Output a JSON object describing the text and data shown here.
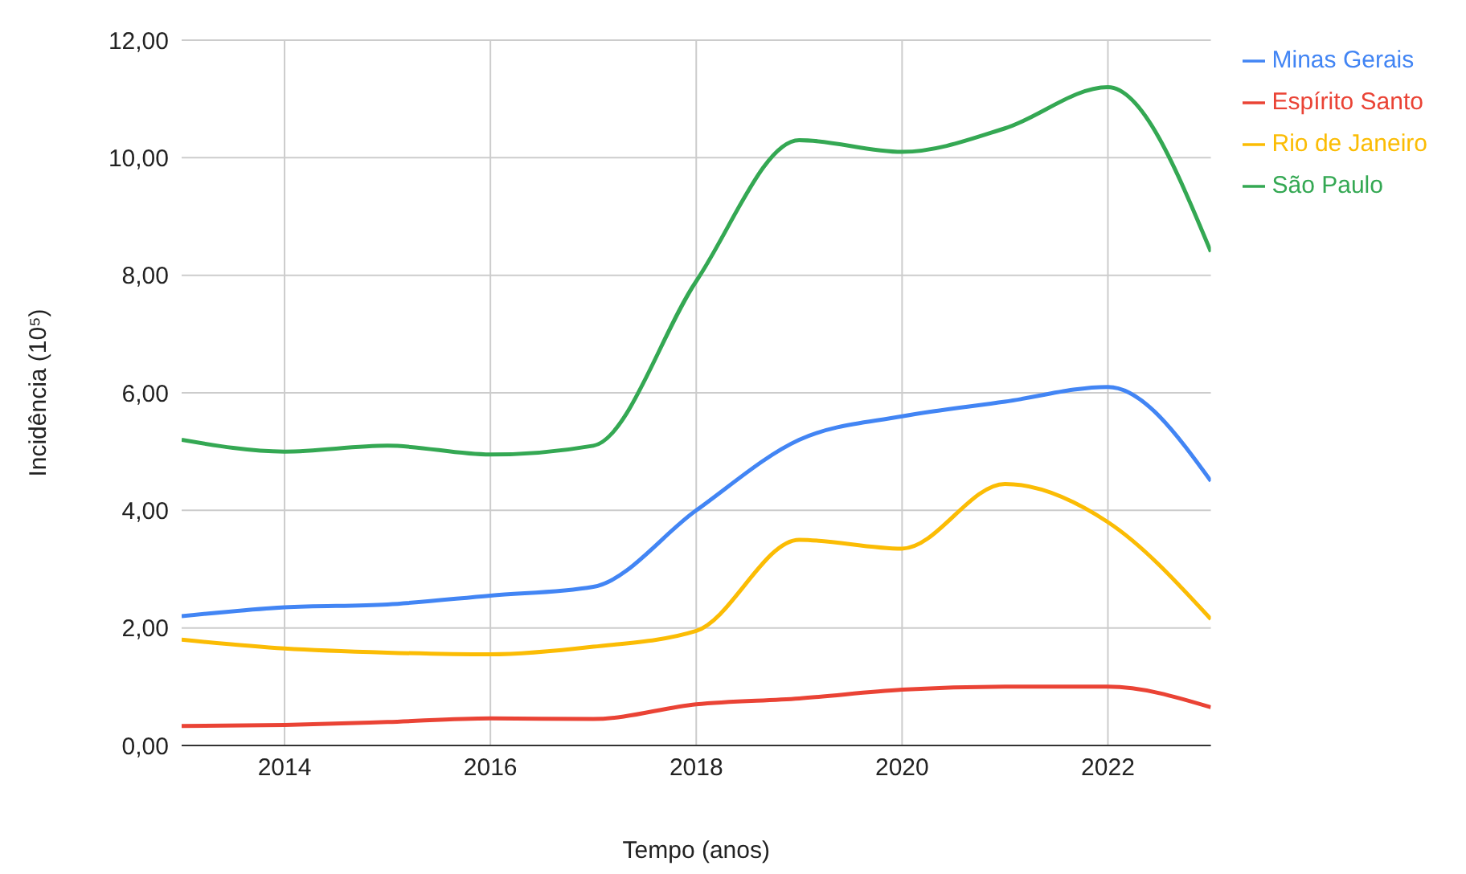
{
  "chart_data": {
    "type": "line",
    "xlabel": "Tempo (anos)",
    "ylabel": "Incidência (10⁵)",
    "x": [
      2013,
      2014,
      2015,
      2016,
      2017,
      2018,
      2019,
      2020,
      2021,
      2022,
      2023
    ],
    "series": [
      {
        "name": "Minas Gerais",
        "color": "#4285f4",
        "values": [
          2.2,
          2.35,
          2.4,
          2.55,
          2.7,
          4.0,
          5.2,
          5.6,
          5.85,
          6.1,
          4.5
        ]
      },
      {
        "name": "Espírito Santo",
        "color": "#ea4335",
        "values": [
          0.33,
          0.35,
          0.4,
          0.46,
          0.45,
          0.7,
          0.8,
          0.95,
          1.0,
          1.0,
          0.65
        ]
      },
      {
        "name": "Rio de Janeiro",
        "color": "#fbbc04",
        "values": [
          1.8,
          1.65,
          1.58,
          1.55,
          1.68,
          1.95,
          3.5,
          3.35,
          4.45,
          3.8,
          2.15
        ]
      },
      {
        "name": "São Paulo",
        "color": "#34a853",
        "values": [
          5.2,
          5.0,
          5.1,
          4.95,
          5.1,
          7.9,
          10.3,
          10.1,
          10.5,
          11.2,
          8.4
        ]
      }
    ],
    "xlim": [
      2013,
      2023
    ],
    "xticks": [
      2014,
      2016,
      2018,
      2020,
      2022
    ],
    "ylim": [
      0,
      12
    ],
    "yticks": [
      {
        "value": 0,
        "label": "0,00"
      },
      {
        "value": 2,
        "label": "2,00"
      },
      {
        "value": 4,
        "label": "4,00"
      },
      {
        "value": 6,
        "label": "6,00"
      },
      {
        "value": 8,
        "label": "8,00"
      },
      {
        "value": 10,
        "label": "10,00"
      },
      {
        "value": 12,
        "label": "12,00"
      }
    ],
    "grid": true,
    "legend": "top right",
    "marker": "none",
    "line_style": "solid"
  }
}
